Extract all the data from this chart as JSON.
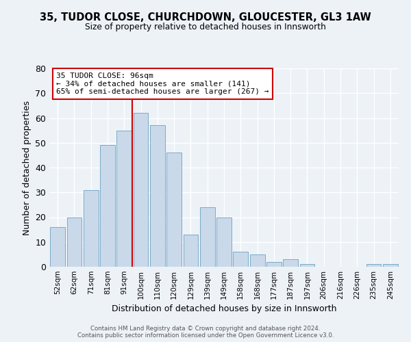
{
  "title": "35, TUDOR CLOSE, CHURCHDOWN, GLOUCESTER, GL3 1AW",
  "subtitle": "Size of property relative to detached houses in Innsworth",
  "xlabel": "Distribution of detached houses by size in Innsworth",
  "ylabel": "Number of detached properties",
  "categories": [
    "52sqm",
    "62sqm",
    "71sqm",
    "81sqm",
    "91sqm",
    "100sqm",
    "110sqm",
    "120sqm",
    "129sqm",
    "139sqm",
    "149sqm",
    "158sqm",
    "168sqm",
    "177sqm",
    "187sqm",
    "197sqm",
    "206sqm",
    "216sqm",
    "226sqm",
    "235sqm",
    "245sqm"
  ],
  "values": [
    16,
    20,
    31,
    49,
    55,
    62,
    57,
    46,
    13,
    24,
    20,
    6,
    5,
    2,
    3,
    1,
    0,
    0,
    0,
    1,
    1
  ],
  "bar_color": "#c9d9ea",
  "bar_edge_color": "#7aaac8",
  "vline_x_index": 5,
  "vline_color": "#cc0000",
  "annotation_title": "35 TUDOR CLOSE: 96sqm",
  "annotation_line1": "← 34% of detached houses are smaller (141)",
  "annotation_line2": "65% of semi-detached houses are larger (267) →",
  "annotation_box_facecolor": "#ffffff",
  "annotation_box_edgecolor": "#cc0000",
  "ylim": [
    0,
    80
  ],
  "yticks": [
    0,
    10,
    20,
    30,
    40,
    50,
    60,
    70,
    80
  ],
  "footer1": "Contains HM Land Registry data © Crown copyright and database right 2024.",
  "footer2": "Contains public sector information licensed under the Open Government Licence v3.0.",
  "background_color": "#edf2f7",
  "grid_color": "#ffffff",
  "figsize": [
    6.0,
    5.0
  ],
  "dpi": 100
}
